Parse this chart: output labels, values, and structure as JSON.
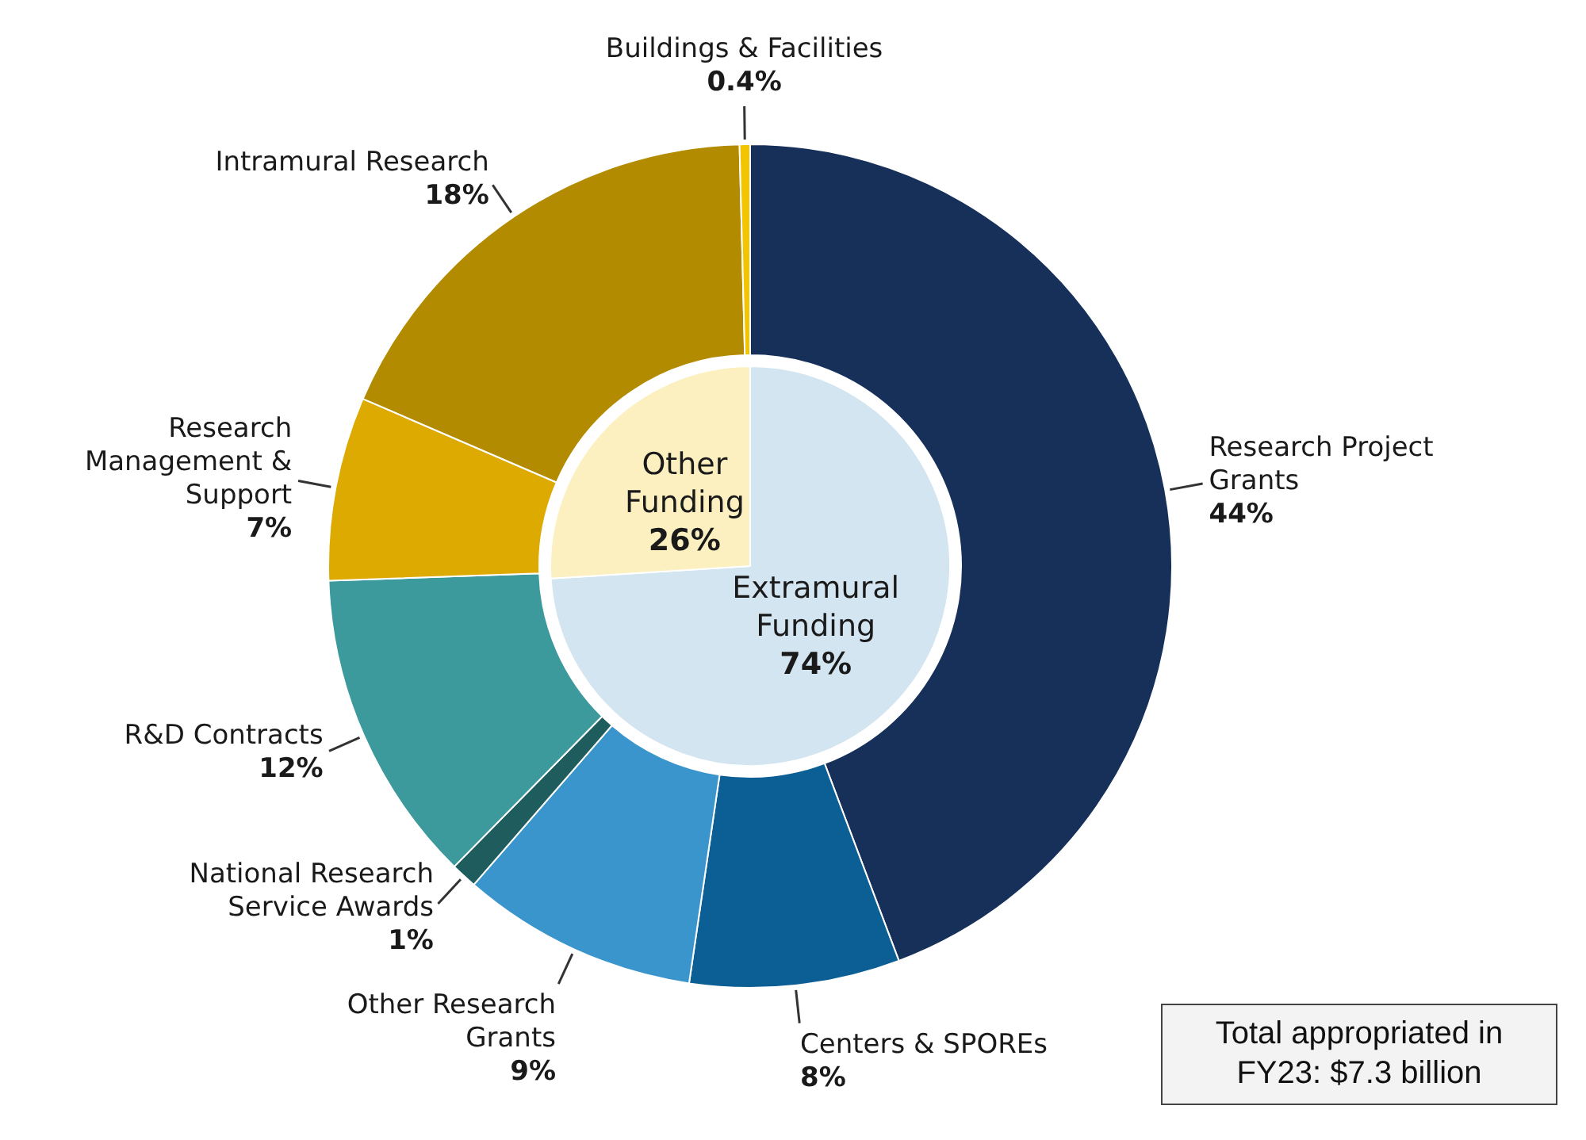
{
  "chart_data": [
    {
      "type": "donut",
      "categories": [
        "Research Project Grants",
        "Centers & SPOREs",
        "Other Research Grants",
        "National Research Service Awards",
        "R&D Contracts",
        "Research Management & Support",
        "Intramural Research",
        "Buildings & Facilities"
      ],
      "values": [
        44,
        8,
        9,
        1,
        12,
        7,
        18,
        0.4
      ],
      "value_labels": [
        "44%",
        "8%",
        "9%",
        "1%",
        "12%",
        "7%",
        "18%",
        "0.4%"
      ],
      "colors": [
        "#16305a",
        "#0b5f94",
        "#3a95cc",
        "#1f5c5e",
        "#3d9a9c",
        "#dcaa00",
        "#b38b00",
        "#f2c500"
      ],
      "annotations": [
        "Total appropriated in FY23: $7.3 billion"
      ]
    },
    {
      "type": "pie",
      "categories": [
        "Extramural Funding",
        "Other Funding"
      ],
      "values": [
        74,
        26
      ],
      "value_labels": [
        "74%",
        "26%"
      ],
      "colors": [
        "#d3e5f1",
        "#fcf0c0"
      ]
    }
  ]
}
